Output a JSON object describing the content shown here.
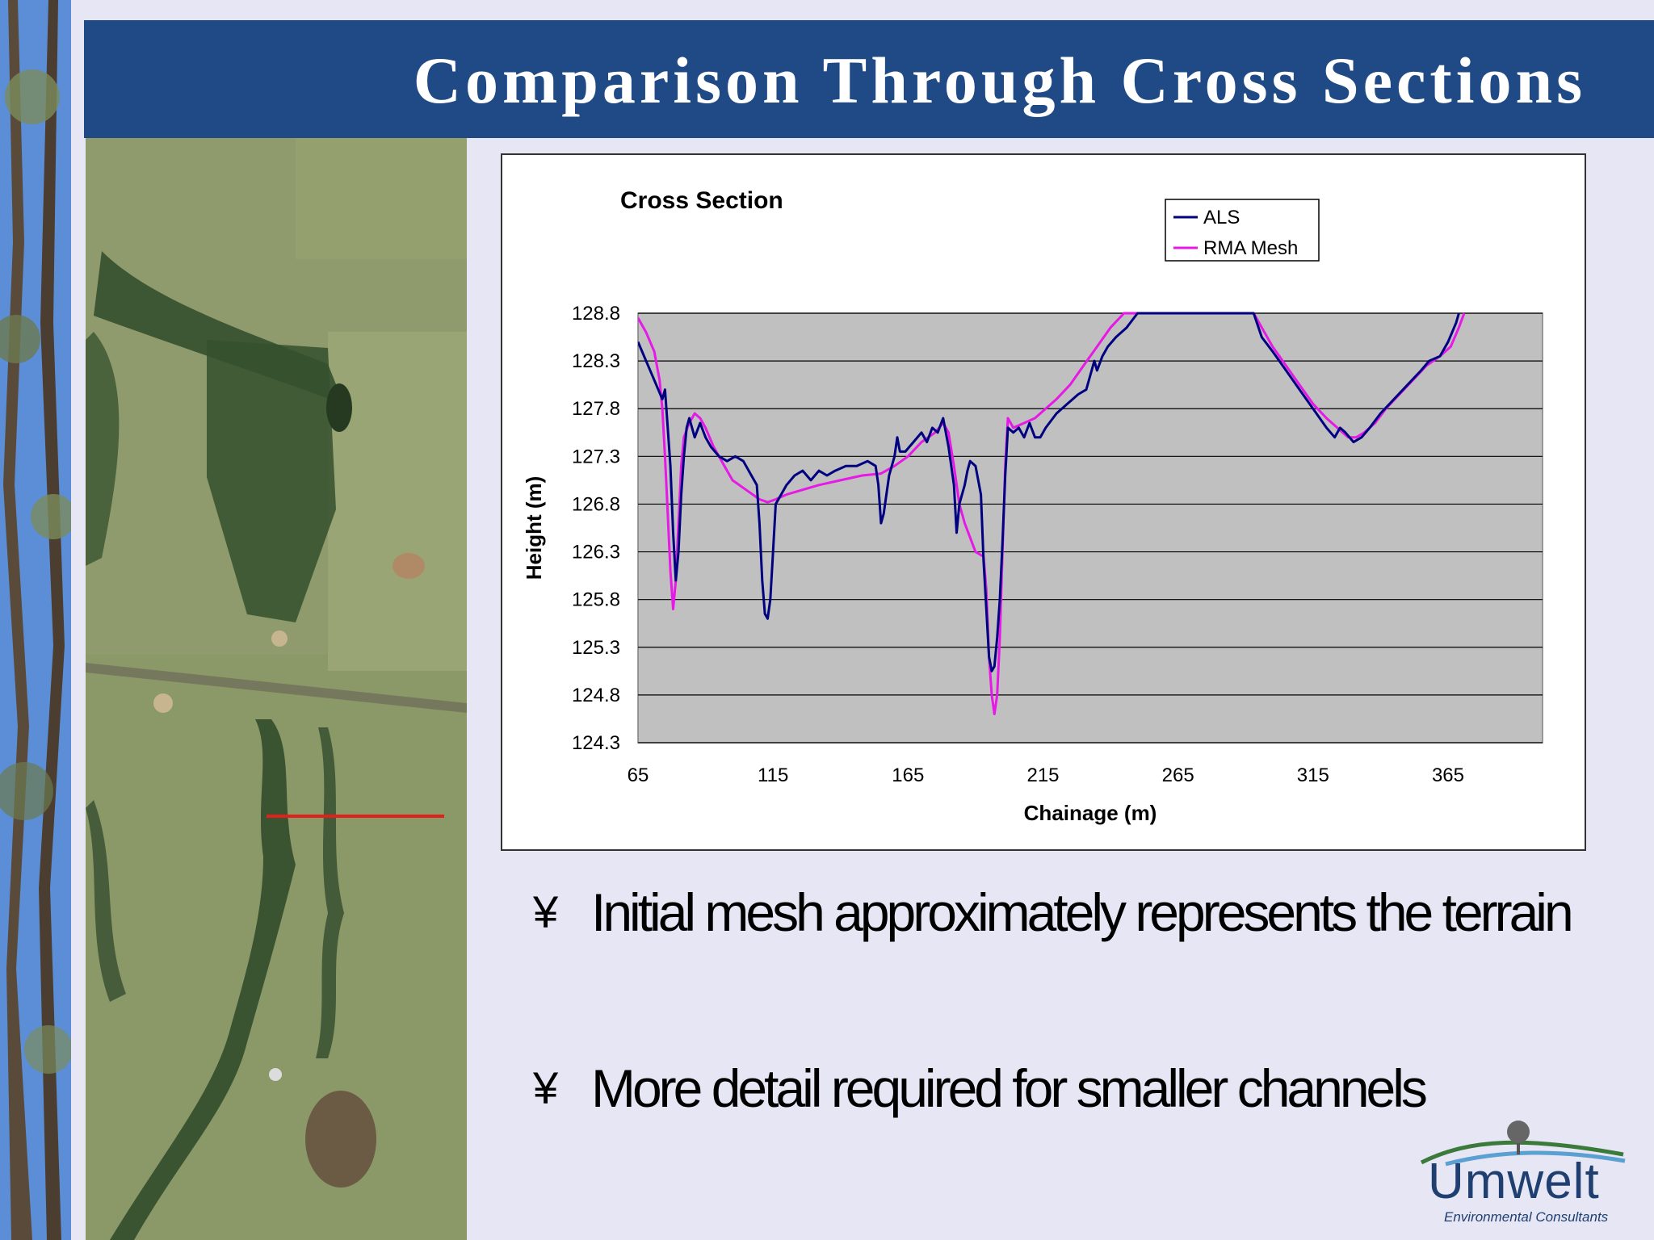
{
  "slide": {
    "title": "Comparison Through Cross Sections"
  },
  "bullets": [
    {
      "mark": "¥",
      "text": "Initial mesh approximately represents the terrain"
    },
    {
      "mark": "¥",
      "text": "More detail required for smaller channels"
    }
  ],
  "logo": {
    "name": "Umwelt",
    "tagline": "Environmental Consultants"
  },
  "colors": {
    "title_bar": "#1f4a86",
    "background": "#e6e6f5",
    "plot_area": "#c0c0c0",
    "als": "#000080",
    "rma": "#e619e6",
    "section_line": "#e0201a"
  },
  "chart_data": {
    "type": "line",
    "title": "Cross Section",
    "xlabel": "Chainage (m)",
    "ylabel": "Height (m)",
    "xlim": [
      65,
      400
    ],
    "ylim": [
      124.3,
      128.8
    ],
    "xticks": [
      65,
      115,
      165,
      215,
      265,
      315,
      365
    ],
    "yticks": [
      128.8,
      128.3,
      127.8,
      127.3,
      126.8,
      126.3,
      125.8,
      125.3,
      124.8,
      124.3
    ],
    "grid": "horizontal",
    "legend_position": "top-right",
    "series": [
      {
        "name": "ALS",
        "color": "#000080",
        "points": [
          [
            65,
            128.5
          ],
          [
            68,
            128.3
          ],
          [
            71,
            128.1
          ],
          [
            74,
            127.9
          ],
          [
            75,
            128.0
          ],
          [
            76,
            127.6
          ],
          [
            77,
            127.2
          ],
          [
            78,
            126.5
          ],
          [
            79,
            126.0
          ],
          [
            80,
            126.3
          ],
          [
            81,
            126.9
          ],
          [
            82,
            127.3
          ],
          [
            83,
            127.6
          ],
          [
            84,
            127.7
          ],
          [
            86,
            127.5
          ],
          [
            88,
            127.65
          ],
          [
            90,
            127.5
          ],
          [
            92,
            127.4
          ],
          [
            95,
            127.3
          ],
          [
            98,
            127.25
          ],
          [
            101,
            127.3
          ],
          [
            104,
            127.25
          ],
          [
            107,
            127.1
          ],
          [
            109,
            127.0
          ],
          [
            110,
            126.6
          ],
          [
            111,
            126.0
          ],
          [
            112,
            125.65
          ],
          [
            113,
            125.6
          ],
          [
            114,
            125.8
          ],
          [
            115,
            126.3
          ],
          [
            116,
            126.8
          ],
          [
            118,
            126.9
          ],
          [
            120,
            127.0
          ],
          [
            123,
            127.1
          ],
          [
            126,
            127.15
          ],
          [
            129,
            127.05
          ],
          [
            132,
            127.15
          ],
          [
            135,
            127.1
          ],
          [
            138,
            127.15
          ],
          [
            142,
            127.2
          ],
          [
            146,
            127.2
          ],
          [
            150,
            127.25
          ],
          [
            153,
            127.2
          ],
          [
            154,
            127.0
          ],
          [
            155,
            126.6
          ],
          [
            156,
            126.7
          ],
          [
            158,
            127.1
          ],
          [
            160,
            127.3
          ],
          [
            161,
            127.5
          ],
          [
            162,
            127.35
          ],
          [
            164,
            127.35
          ],
          [
            167,
            127.45
          ],
          [
            170,
            127.55
          ],
          [
            172,
            127.45
          ],
          [
            174,
            127.6
          ],
          [
            176,
            127.55
          ],
          [
            178,
            127.7
          ],
          [
            180,
            127.4
          ],
          [
            182,
            127.0
          ],
          [
            183,
            126.5
          ],
          [
            184,
            126.8
          ],
          [
            186,
            127.0
          ],
          [
            187,
            127.15
          ],
          [
            188,
            127.25
          ],
          [
            190,
            127.2
          ],
          [
            192,
            126.9
          ],
          [
            193,
            126.2
          ],
          [
            194,
            125.7
          ],
          [
            195,
            125.2
          ],
          [
            196,
            125.05
          ],
          [
            197,
            125.1
          ],
          [
            198,
            125.4
          ],
          [
            199,
            125.8
          ],
          [
            200,
            126.4
          ],
          [
            201,
            127.1
          ],
          [
            202,
            127.6
          ],
          [
            204,
            127.55
          ],
          [
            206,
            127.6
          ],
          [
            208,
            127.5
          ],
          [
            210,
            127.65
          ],
          [
            212,
            127.5
          ],
          [
            214,
            127.5
          ],
          [
            216,
            127.6
          ],
          [
            220,
            127.75
          ],
          [
            224,
            127.85
          ],
          [
            228,
            127.95
          ],
          [
            231,
            128.0
          ],
          [
            233,
            128.2
          ],
          [
            234,
            128.3
          ],
          [
            235,
            128.2
          ],
          [
            237,
            128.35
          ],
          [
            239,
            128.45
          ],
          [
            242,
            128.55
          ],
          [
            246,
            128.65
          ],
          [
            250,
            128.8
          ],
          [
            293,
            128.8
          ],
          [
            296,
            128.55
          ],
          [
            300,
            128.4
          ],
          [
            305,
            128.2
          ],
          [
            310,
            128.0
          ],
          [
            315,
            127.8
          ],
          [
            320,
            127.6
          ],
          [
            323,
            127.5
          ],
          [
            325,
            127.6
          ],
          [
            327,
            127.55
          ],
          [
            330,
            127.45
          ],
          [
            333,
            127.5
          ],
          [
            336,
            127.6
          ],
          [
            340,
            127.75
          ],
          [
            345,
            127.9
          ],
          [
            350,
            128.05
          ],
          [
            355,
            128.2
          ],
          [
            358,
            128.3
          ],
          [
            362,
            128.35
          ],
          [
            365,
            128.5
          ],
          [
            368,
            128.7
          ],
          [
            369,
            128.8
          ]
        ]
      },
      {
        "name": "RMA Mesh",
        "color": "#e619e6",
        "points": [
          [
            65,
            128.75
          ],
          [
            68,
            128.6
          ],
          [
            71,
            128.4
          ],
          [
            73,
            128.1
          ],
          [
            74,
            127.8
          ],
          [
            75,
            127.3
          ],
          [
            76,
            126.7
          ],
          [
            77,
            126.1
          ],
          [
            78,
            125.7
          ],
          [
            79,
            126.0
          ],
          [
            80,
            126.6
          ],
          [
            81,
            127.2
          ],
          [
            82,
            127.5
          ],
          [
            84,
            127.65
          ],
          [
            86,
            127.75
          ],
          [
            88,
            127.7
          ],
          [
            90,
            127.6
          ],
          [
            93,
            127.4
          ],
          [
            97,
            127.2
          ],
          [
            100,
            127.05
          ],
          [
            105,
            126.95
          ],
          [
            110,
            126.85
          ],
          [
            113,
            126.82
          ],
          [
            116,
            126.85
          ],
          [
            120,
            126.9
          ],
          [
            126,
            126.95
          ],
          [
            132,
            127.0
          ],
          [
            140,
            127.05
          ],
          [
            148,
            127.1
          ],
          [
            155,
            127.12
          ],
          [
            160,
            127.2
          ],
          [
            165,
            127.3
          ],
          [
            170,
            127.45
          ],
          [
            175,
            127.55
          ],
          [
            178,
            127.65
          ],
          [
            180,
            127.55
          ],
          [
            182,
            127.2
          ],
          [
            184,
            126.8
          ],
          [
            186,
            126.6
          ],
          [
            188,
            126.45
          ],
          [
            190,
            126.3
          ],
          [
            193,
            126.25
          ],
          [
            194,
            125.9
          ],
          [
            195,
            125.2
          ],
          [
            196,
            124.8
          ],
          [
            197,
            124.6
          ],
          [
            198,
            124.8
          ],
          [
            199,
            125.4
          ],
          [
            200,
            126.3
          ],
          [
            201,
            127.2
          ],
          [
            202,
            127.7
          ],
          [
            204,
            127.6
          ],
          [
            208,
            127.65
          ],
          [
            212,
            127.7
          ],
          [
            216,
            127.8
          ],
          [
            220,
            127.9
          ],
          [
            225,
            128.05
          ],
          [
            230,
            128.25
          ],
          [
            235,
            128.45
          ],
          [
            240,
            128.65
          ],
          [
            245,
            128.8
          ],
          [
            293,
            128.8
          ],
          [
            300,
            128.45
          ],
          [
            305,
            128.25
          ],
          [
            310,
            128.05
          ],
          [
            315,
            127.85
          ],
          [
            320,
            127.7
          ],
          [
            324,
            127.6
          ],
          [
            328,
            127.5
          ],
          [
            331,
            127.5
          ],
          [
            334,
            127.55
          ],
          [
            338,
            127.65
          ],
          [
            342,
            127.8
          ],
          [
            347,
            127.95
          ],
          [
            352,
            128.1
          ],
          [
            357,
            128.25
          ],
          [
            362,
            128.35
          ],
          [
            366,
            128.45
          ],
          [
            369,
            128.65
          ],
          [
            371,
            128.8
          ]
        ]
      }
    ]
  }
}
